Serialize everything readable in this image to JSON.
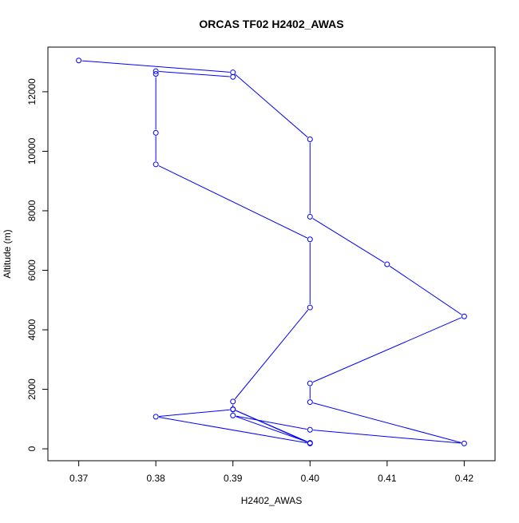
{
  "chart_data": {
    "type": "line",
    "title": "ORCAS TF02 H2402_AWAS",
    "xlabel": "H2402_AWAS",
    "ylabel": "Altitude (m)",
    "xlim": [
      0.366,
      0.424
    ],
    "ylim": [
      -400,
      13500
    ],
    "xticks": [
      0.37,
      0.38,
      0.39,
      0.4,
      0.41,
      0.42
    ],
    "xtick_labels": [
      "0.37",
      "0.38",
      "0.39",
      "0.40",
      "0.41",
      "0.42"
    ],
    "yticks": [
      0,
      2000,
      4000,
      6000,
      8000,
      10000,
      12000
    ],
    "ytick_labels": [
      "0",
      "2000",
      "4000",
      "6000",
      "8000",
      "10000",
      "12000"
    ],
    "grid": false,
    "series": [
      {
        "color": "#0000ff",
        "marker": "open-circle",
        "x": [
          0.37,
          0.39,
          0.4,
          0.4,
          0.41,
          0.42,
          0.4,
          0.4,
          0.42,
          0.4,
          0.39,
          0.4,
          0.39,
          0.4,
          0.38,
          0.39,
          0.39,
          0.4,
          0.4,
          0.38,
          0.38,
          0.38,
          0.38,
          0.39
        ],
        "y": [
          13050,
          12650,
          10400,
          7800,
          6200,
          4450,
          2200,
          1570,
          180,
          640,
          1120,
          200,
          1330,
          180,
          1080,
          1320,
          1590,
          4750,
          7040,
          9560,
          10620,
          12600,
          12690,
          12500
        ]
      }
    ]
  }
}
